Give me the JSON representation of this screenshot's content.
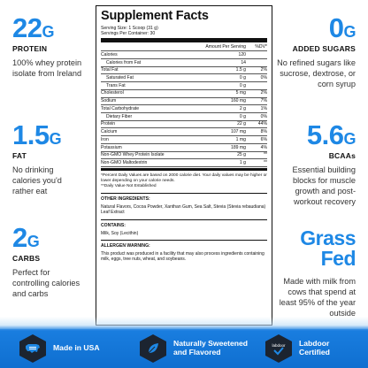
{
  "left": [
    {
      "value": "22",
      "unit": "G",
      "label": "PROTEIN",
      "desc": "100% whey protein isolate from Ireland"
    },
    {
      "value": "1.5",
      "unit": "G",
      "label": "FAT",
      "desc": "No drinking calories you'd rather eat"
    },
    {
      "value": "2",
      "unit": "G",
      "label": "CARBS",
      "desc": "Perfect for controlling calories and carbs"
    }
  ],
  "right": [
    {
      "value": "0",
      "unit": "G",
      "label": "ADDED SUGARS",
      "desc": "No refined sugars like sucrose, dextrose, or corn syrup"
    },
    {
      "value": "5.6",
      "unit": "G",
      "label": "BCAAs",
      "desc": "Essential building blocks for muscle growth and post-workout recovery"
    },
    {
      "value": "Grass Fed",
      "unit": "",
      "label": "",
      "desc": "Made with milk from cows that spend at least 95% of the year outside"
    }
  ],
  "facts": {
    "title": "Supplement Facts",
    "serving_size": "Serving Size: 1 Scoop (31 g)",
    "servings": "Servings Per Container: 30",
    "col_amount": "Amount Per Serving",
    "col_dv": "%DV*",
    "rows": [
      {
        "name": "Calories",
        "amount": "120",
        "dv": "",
        "indent": 0,
        "bold": false
      },
      {
        "name": "Calories from Fat",
        "amount": "14",
        "dv": "",
        "indent": 1,
        "bold": false
      },
      {
        "name": "Total Fat",
        "amount": "1.5 g",
        "dv": "2%",
        "indent": 0,
        "bold": false
      },
      {
        "name": "Saturated Fat",
        "amount": "0 g",
        "dv": "0%",
        "indent": 1,
        "bold": false
      },
      {
        "name": "Trans Fat",
        "amount": "0 g",
        "dv": "",
        "indent": 1,
        "bold": false
      },
      {
        "name": "Cholesterol",
        "amount": "5 mg",
        "dv": "2%",
        "indent": 0,
        "bold": false
      },
      {
        "name": "Sodium",
        "amount": "160 mg",
        "dv": "7%",
        "indent": 0,
        "bold": false
      },
      {
        "name": "Total Carbohydrate",
        "amount": "2 g",
        "dv": "1%",
        "indent": 0,
        "bold": false
      },
      {
        "name": "Dietary Fiber",
        "amount": "0 g",
        "dv": "0%",
        "indent": 1,
        "bold": false
      },
      {
        "name": "Protein",
        "amount": "22 g",
        "dv": "44%",
        "indent": 0,
        "bold": false
      },
      {
        "name": "Calcium",
        "amount": "107 mg",
        "dv": "8%",
        "indent": 0,
        "bold": false
      },
      {
        "name": "Iron",
        "amount": "1 mg",
        "dv": "6%",
        "indent": 0,
        "bold": false
      },
      {
        "name": "Potassium",
        "amount": "189 mg",
        "dv": "4%",
        "indent": 0,
        "bold": false
      },
      {
        "name": "Non-GMO Whey Protein Isolate",
        "amount": "25 g",
        "dv": "**",
        "indent": 0,
        "bold": false
      },
      {
        "name": "Non-GMO Maltodextrin",
        "amount": "1 g",
        "dv": "**",
        "indent": 0,
        "bold": false
      }
    ],
    "footnote1": "*Percent Daily Values are based on 2000 calorie diet. Your daily values may be higher or lower depending on your calorie needs.",
    "footnote2": "**Daily Value Not Established",
    "other_h": "OTHER INGREDIENTS:",
    "other_t": "Natural Flavors, Cocoa Powder, Xanthan Gum, Sea Salt, Stevia (Stevia rebaudiana) Leaf Extract",
    "contains_h": "CONTAINS:",
    "contains_t": "Milk, Soy (Lecithin)",
    "allergen_h": "ALLERGEN WARNING:",
    "allergen_t": "This product was produced in a facility that may also process ingredients containing milk, eggs, tree nuts, wheat, and soybeans."
  },
  "badges": [
    {
      "icon": "usa-map-icon",
      "line1": "Made in USA",
      "line2": ""
    },
    {
      "icon": "leaf-icon",
      "line1": "Naturally Sweetened",
      "line2": "and Flavored"
    },
    {
      "icon": "labdoor-icon",
      "line1": "Labdoor",
      "line2": "Certified",
      "icon_text": "labdoor"
    }
  ],
  "colors": {
    "accent": "#1e88e5",
    "band": "#1a7ee0",
    "hex": "#1c2430"
  }
}
